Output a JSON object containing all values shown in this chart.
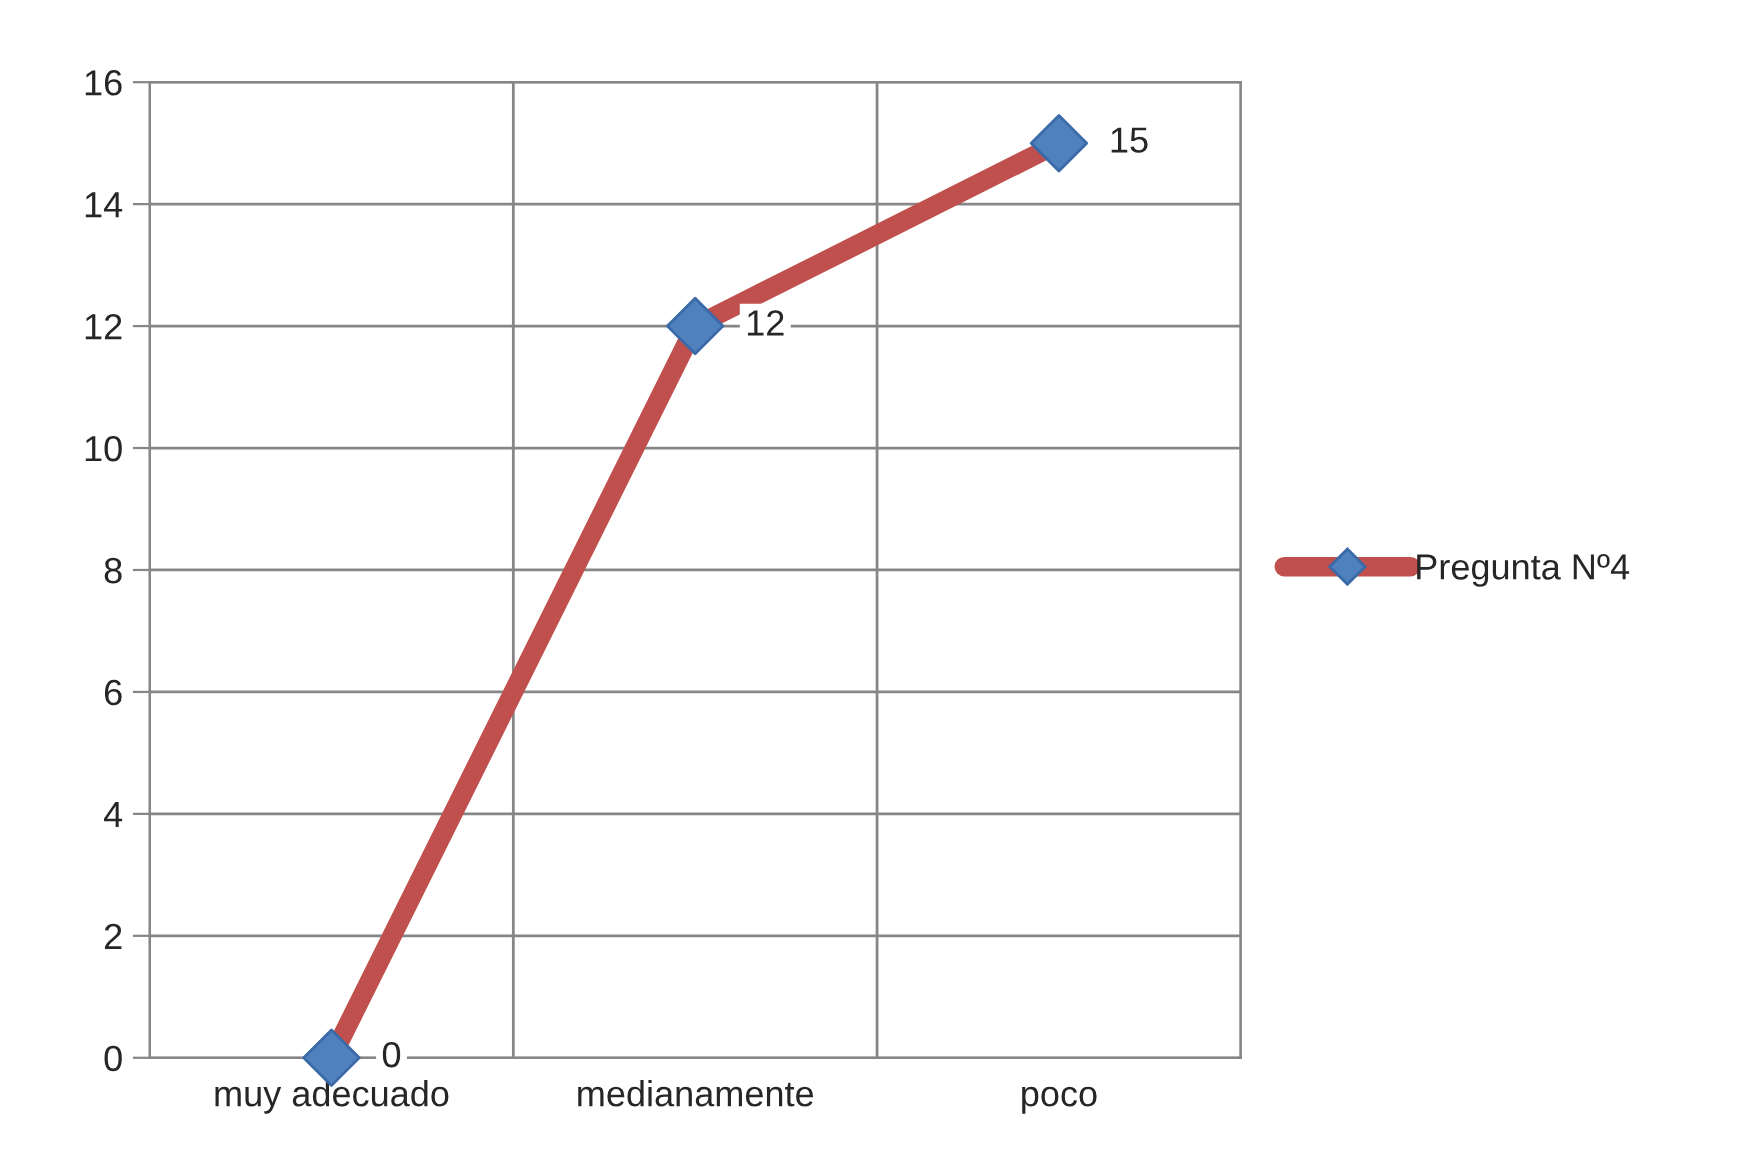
{
  "chart_data": {
    "type": "line",
    "categories": [
      "muy adecuado",
      "medianamente",
      "poco"
    ],
    "series": [
      {
        "name": "Pregunta Nº4",
        "color": "#c0504d",
        "colors": [
          "#4f81bd",
          "#4f81bd",
          "#4f81bd"
        ],
        "values": [
          0,
          12,
          15
        ]
      }
    ],
    "ylim": [
      0,
      16
    ],
    "yticks": [
      0,
      2,
      4,
      6,
      8,
      10,
      12,
      14,
      16
    ],
    "grid": true,
    "legend": "right",
    "marker": "diamond",
    "line_style": "solid",
    "data_labels": true
  }
}
